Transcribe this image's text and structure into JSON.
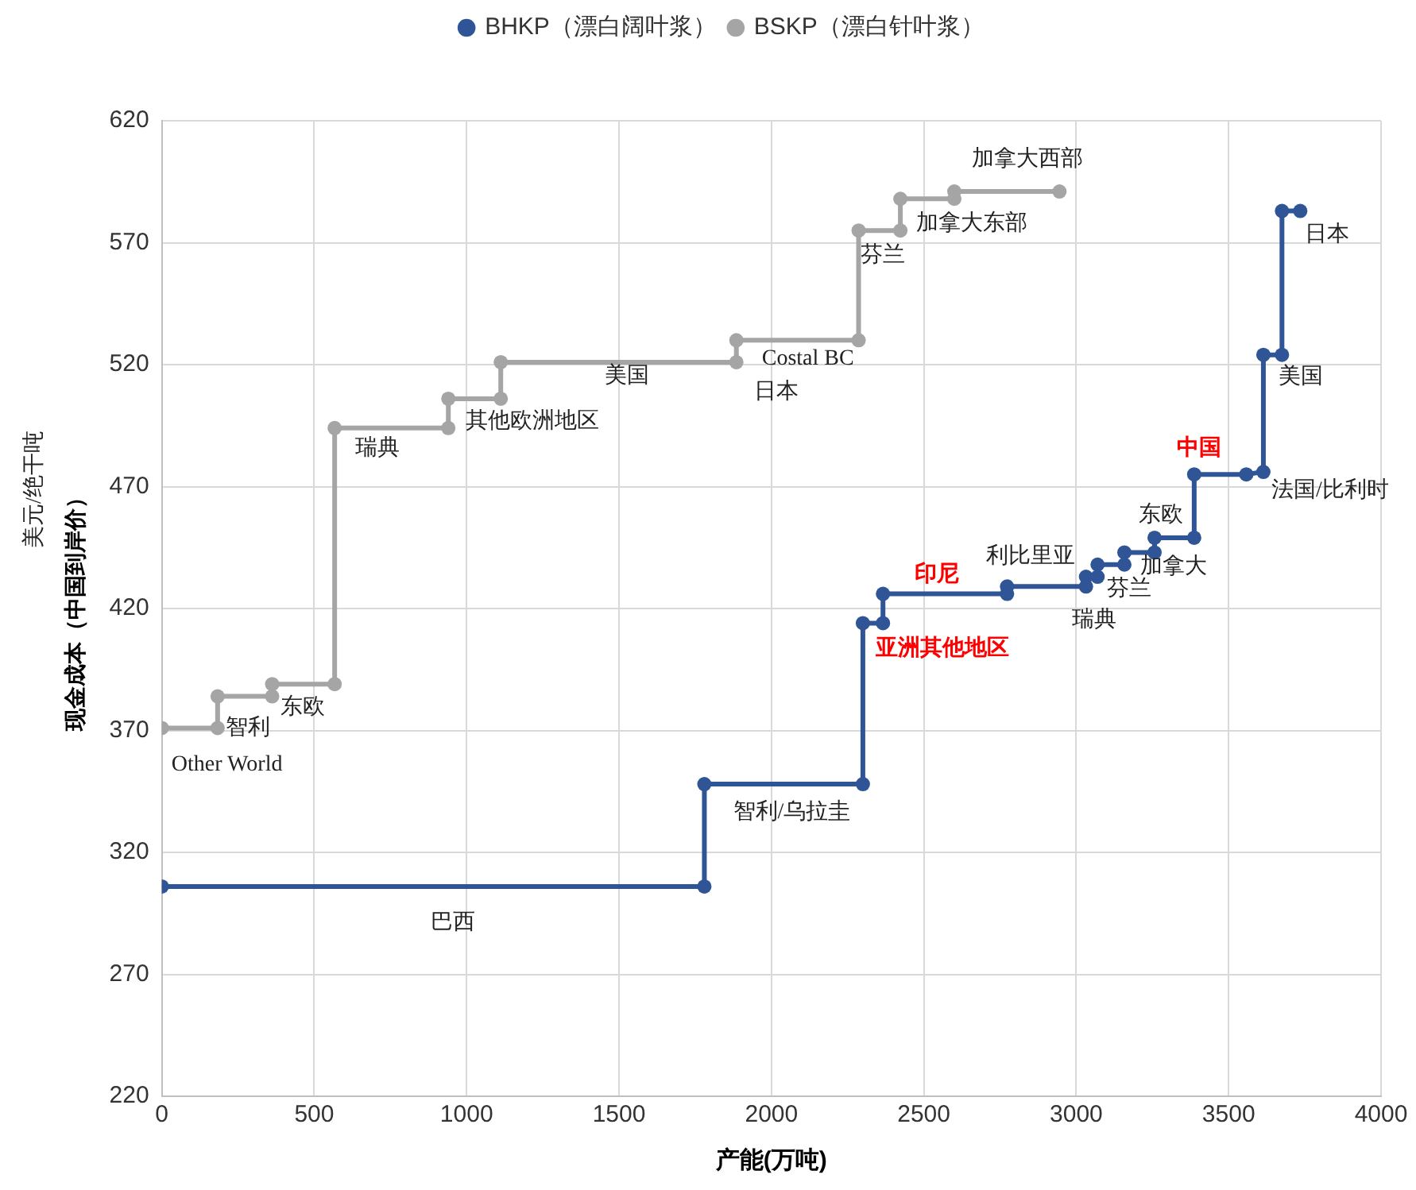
{
  "chart_data": {
    "type": "line",
    "xlabel": "产能(万吨)",
    "ylabel": "现金成本（中国到岸价）",
    "xlim": [
      0,
      4000
    ],
    "xticks": [
      0,
      500,
      1000,
      1500,
      2000,
      2500,
      3000,
      3500,
      4000
    ],
    "ylim": [
      220,
      620
    ],
    "yticks": [
      220,
      270,
      320,
      370,
      420,
      470,
      520,
      570,
      620
    ],
    "grid": true,
    "legend": "top",
    "marker": "circle",
    "line_style": "solid",
    "series": [
      {
        "name": "BHKP（漂白阔叶浆）",
        "color": "#2f5597",
        "x": [
          0,
          1780,
          1780,
          2300,
          2300,
          2366,
          2366,
          2773,
          2773,
          3032,
          3032,
          3070,
          3070,
          3158,
          3158,
          3257,
          3257,
          3387,
          3387,
          3558,
          3614,
          3614,
          3675,
          3675,
          3735
        ],
        "values": [
          306,
          306,
          348,
          348,
          414,
          414,
          426,
          426,
          429,
          429,
          433,
          433,
          438,
          438,
          443,
          443,
          449,
          449,
          475,
          475,
          476,
          524,
          524,
          583,
          583
        ]
      },
      {
        "name": "BSKP（漂白针叶浆）",
        "color": "#a5a5a5",
        "x": [
          0,
          183,
          183,
          362,
          362,
          567,
          567,
          940,
          940,
          1112,
          1112,
          1885,
          1885,
          2286,
          2286,
          2423,
          2423,
          2600,
          2600,
          2945
        ],
        "values": [
          371,
          371,
          384,
          384,
          389,
          389,
          494,
          494,
          506,
          506,
          521,
          521,
          530,
          530,
          575,
          575,
          588,
          588,
          591,
          591
        ]
      }
    ],
    "annotations": [
      {
        "text": "Other World",
        "x": 0,
        "y": 371
      },
      {
        "text": "智利",
        "x": 183,
        "y": 371
      },
      {
        "text": "东欧",
        "x": 362,
        "y": 384
      },
      {
        "text": "瑞典",
        "x": 567,
        "y": 494
      },
      {
        "text": "其他欧洲地区",
        "x": 940,
        "y": 494
      },
      {
        "text": "美国",
        "x": 1525,
        "y": 521
      },
      {
        "text": "Costal BC",
        "x": 1885,
        "y": 521
      },
      {
        "text": "日本",
        "x": 1885,
        "y": 521
      },
      {
        "text": "芬兰",
        "x": 2286,
        "y": 575
      },
      {
        "text": "加拿大东部",
        "x": 2423,
        "y": 575
      },
      {
        "text": "加拿大西部",
        "x": 2600,
        "y": 591
      },
      {
        "text": "巴西",
        "x": 956,
        "y": 306
      },
      {
        "text": "智利/乌拉圭",
        "x": 1780,
        "y": 348
      },
      {
        "text": "亚洲其他地区",
        "x": 2300,
        "y": 414
      },
      {
        "text": "印尼",
        "x": 2366,
        "y": 426
      },
      {
        "text": "利比里亚",
        "x": 2773,
        "y": 429
      },
      {
        "text": "瑞典",
        "x": 3032,
        "y": 429
      },
      {
        "text": "芬兰",
        "x": 3070,
        "y": 433
      },
      {
        "text": "加拿大",
        "x": 3257,
        "y": 443
      },
      {
        "text": "东欧",
        "x": 3257,
        "y": 449
      },
      {
        "text": "中国",
        "x": 3387,
        "y": 475
      },
      {
        "text": "法国/比利时",
        "x": 3614,
        "y": 476
      },
      {
        "text": "美国",
        "x": 3675,
        "y": 524
      },
      {
        "text": "日本",
        "x": 3735,
        "y": 583
      },
      "美元/绝干吨"
    ]
  }
}
